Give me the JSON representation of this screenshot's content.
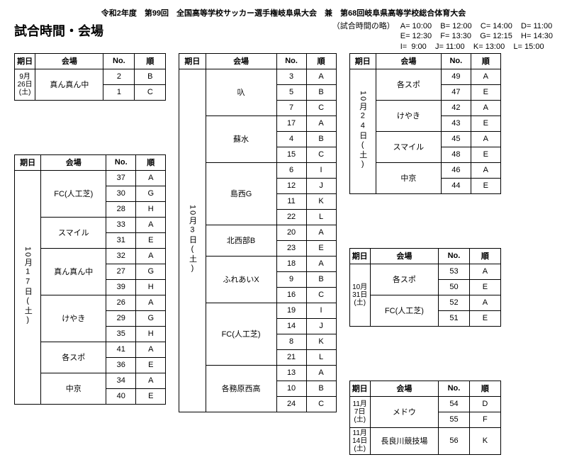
{
  "header": {
    "title_line": "令和2年度　第99回　全国高等学校サッカー選手権岐阜県大会　兼　第68回岐阜県高等学校総合体育大会",
    "section_title": "試合時間・会場",
    "legend_label": "（試合時間の略）",
    "legend_rows": [
      "A= 10:00    B= 12:00    C= 14:00    D= 11:00",
      "E= 12:30    F= 13:30    G= 12:15    H= 14:30",
      "I=  9:00    J= 11:00    K= 13:00    L= 15:00"
    ]
  },
  "col_headers": {
    "date": "期日",
    "venue": "会場",
    "no": "No.",
    "jun": "順"
  },
  "tables": {
    "t1": {
      "date": "9月26日(土)",
      "groups": [
        {
          "venue": "真ん真ん中",
          "rows": [
            {
              "no": "2",
              "jun": "B"
            },
            {
              "no": "1",
              "jun": "C"
            }
          ]
        }
      ]
    },
    "t2": {
      "date": "10月17日(土)",
      "groups": [
        {
          "venue": "FC(人工芝)",
          "rows": [
            {
              "no": "37",
              "jun": "A"
            },
            {
              "no": "30",
              "jun": "G"
            },
            {
              "no": "28",
              "jun": "H"
            }
          ]
        },
        {
          "venue": "スマイル",
          "rows": [
            {
              "no": "33",
              "jun": "A"
            },
            {
              "no": "31",
              "jun": "E"
            }
          ]
        },
        {
          "venue": "真ん真ん中",
          "rows": [
            {
              "no": "32",
              "jun": "A"
            },
            {
              "no": "27",
              "jun": "G"
            },
            {
              "no": "39",
              "jun": "H"
            }
          ]
        },
        {
          "venue": "けやき",
          "rows": [
            {
              "no": "26",
              "jun": "A"
            },
            {
              "no": "29",
              "jun": "G"
            },
            {
              "no": "35",
              "jun": "H"
            }
          ]
        },
        {
          "venue": "各スポ",
          "rows": [
            {
              "no": "41",
              "jun": "A"
            },
            {
              "no": "36",
              "jun": "E"
            }
          ]
        },
        {
          "venue": "中京",
          "rows": [
            {
              "no": "34",
              "jun": "A"
            },
            {
              "no": "40",
              "jun": "E"
            }
          ]
        }
      ]
    },
    "t3": {
      "date": "10月3日(土)",
      "groups": [
        {
          "venue": "叺",
          "rows": [
            {
              "no": "3",
              "jun": "A"
            },
            {
              "no": "5",
              "jun": "B"
            },
            {
              "no": "7",
              "jun": "C"
            }
          ]
        },
        {
          "venue": "蘇水",
          "rows": [
            {
              "no": "17",
              "jun": "A"
            },
            {
              "no": "4",
              "jun": "B"
            },
            {
              "no": "15",
              "jun": "C"
            }
          ]
        },
        {
          "venue": "島西G",
          "rows": [
            {
              "no": "6",
              "jun": "I"
            },
            {
              "no": "12",
              "jun": "J"
            },
            {
              "no": "11",
              "jun": "K"
            },
            {
              "no": "22",
              "jun": "L"
            }
          ]
        },
        {
          "venue": "北西部B",
          "rows": [
            {
              "no": "20",
              "jun": "A"
            },
            {
              "no": "23",
              "jun": "E"
            }
          ]
        },
        {
          "venue": "ふれあいX",
          "rows": [
            {
              "no": "18",
              "jun": "A"
            },
            {
              "no": "9",
              "jun": "B"
            },
            {
              "no": "16",
              "jun": "C"
            }
          ]
        },
        {
          "venue": "FC(人工芝)",
          "rows": [
            {
              "no": "19",
              "jun": "I"
            },
            {
              "no": "14",
              "jun": "J"
            },
            {
              "no": "8",
              "jun": "K"
            },
            {
              "no": "21",
              "jun": "L"
            }
          ]
        },
        {
          "venue": "各務原西高",
          "rows": [
            {
              "no": "13",
              "jun": "A"
            },
            {
              "no": "10",
              "jun": "B"
            },
            {
              "no": "24",
              "jun": "C"
            }
          ]
        }
      ]
    },
    "t4": {
      "date": "10月24日(土)",
      "groups": [
        {
          "venue": "各スポ",
          "rows": [
            {
              "no": "49",
              "jun": "A"
            },
            {
              "no": "47",
              "jun": "E"
            }
          ]
        },
        {
          "venue": "けやき",
          "rows": [
            {
              "no": "42",
              "jun": "A"
            },
            {
              "no": "43",
              "jun": "E"
            }
          ]
        },
        {
          "venue": "スマイル",
          "rows": [
            {
              "no": "45",
              "jun": "A"
            },
            {
              "no": "48",
              "jun": "E"
            }
          ]
        },
        {
          "venue": "中京",
          "rows": [
            {
              "no": "46",
              "jun": "A"
            },
            {
              "no": "44",
              "jun": "E"
            }
          ]
        }
      ]
    },
    "t5": {
      "blocks": [
        {
          "date": "10月31日(土)",
          "groups": [
            {
              "venue": "各スポ",
              "rows": [
                {
                  "no": "53",
                  "jun": "A"
                },
                {
                  "no": "50",
                  "jun": "E"
                }
              ]
            },
            {
              "venue": "FC(人工芝)",
              "rows": [
                {
                  "no": "52",
                  "jun": "A"
                },
                {
                  "no": "51",
                  "jun": "E"
                }
              ]
            }
          ]
        }
      ]
    },
    "t6": {
      "blocks": [
        {
          "date": "11月7日(土)",
          "groups": [
            {
              "venue": "メドウ",
              "rows": [
                {
                  "no": "54",
                  "jun": "D"
                },
                {
                  "no": "55",
                  "jun": "F"
                }
              ]
            }
          ]
        },
        {
          "date": "11月14日(土)",
          "groups": [
            {
              "venue": "長良川競技場",
              "rows": [
                {
                  "no": "56",
                  "jun": "K"
                }
              ]
            }
          ]
        }
      ]
    }
  }
}
